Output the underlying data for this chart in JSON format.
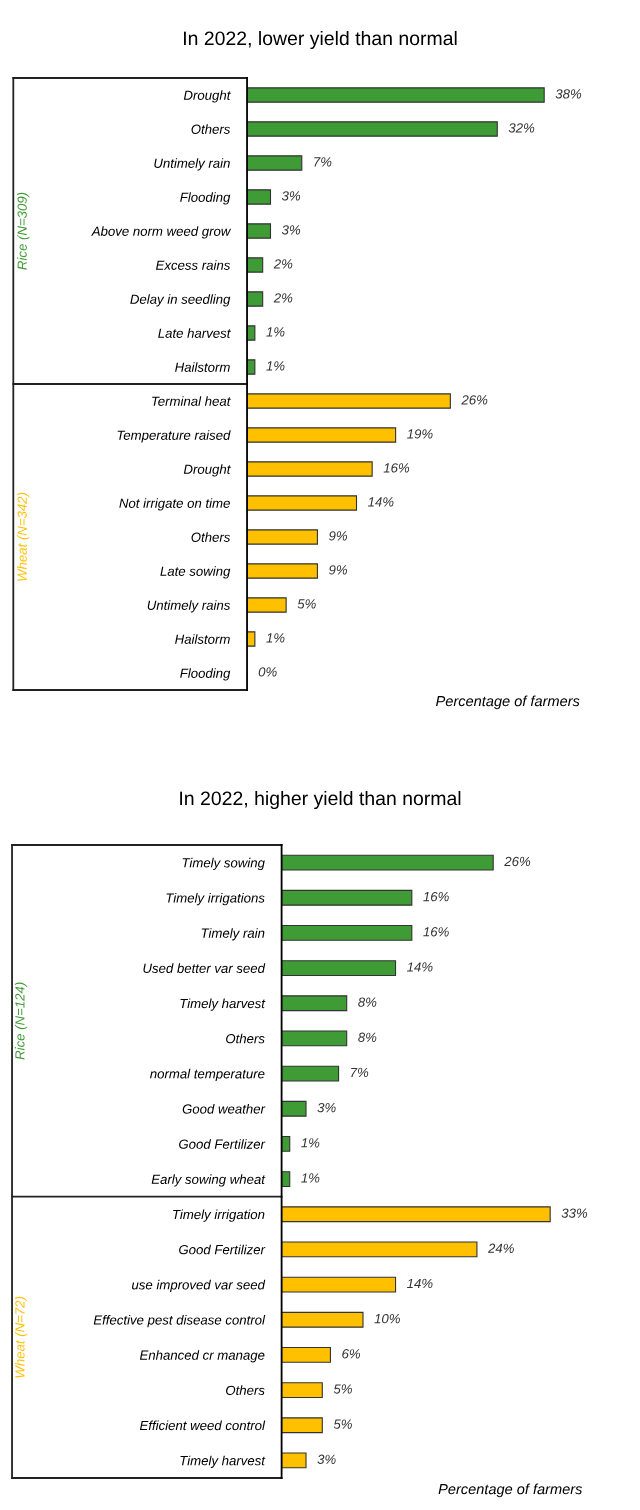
{
  "chart_data": [
    {
      "type": "bar",
      "orientation": "horizontal",
      "title": "In 2022, lower yield than normal",
      "xlabel": "Percentage of farmers",
      "tick_labels": "y",
      "categories": [
        "Drought",
        "Others",
        "Untimely rain",
        "Flooding",
        "Above norm weed grow",
        "Excess rains",
        "Delay in seedling",
        "Late harvest",
        "Hailstorm",
        "Terminal heat",
        "Temperature raised",
        "Drought",
        "Not irrigate on time",
        "Others",
        "Late sowing",
        "Untimely rains",
        "Hailstorm",
        "Flooding"
      ],
      "series": [
        {
          "name": "Rice (N=309)",
          "color": "#3f9b35",
          "values": [
            38,
            32,
            7,
            3,
            3,
            2,
            2,
            1,
            1,
            null,
            null,
            null,
            null,
            null,
            null,
            null,
            null,
            null
          ],
          "value_labels": [
            "38%",
            "32%",
            "7%",
            "3%",
            "3%",
            "2%",
            "2%",
            "1%",
            "1%",
            null,
            null,
            null,
            null,
            null,
            null,
            null,
            null,
            null
          ]
        },
        {
          "name": "Wheat (N=342)",
          "color": "#ffc000",
          "values": [
            null,
            null,
            null,
            null,
            null,
            null,
            null,
            null,
            null,
            26,
            19,
            16,
            14,
            9,
            9,
            5,
            1,
            0
          ],
          "value_labels": [
            null,
            null,
            null,
            null,
            null,
            null,
            null,
            null,
            null,
            "26%",
            "19%",
            "16%",
            "14%",
            "9%",
            "9%",
            "5%",
            "1%",
            "0%"
          ]
        }
      ]
    },
    {
      "type": "bar",
      "orientation": "horizontal",
      "title": "In 2022, higher yield than normal",
      "xlabel": "Percentage of farmers",
      "tick_labels": "y",
      "categories": [
        "Timely sowing",
        "Timely irrigations",
        "Timely rain",
        "Used better var seed",
        "Timely harvest",
        "Others",
        "normal temperature",
        "Good weather",
        "Good Fertilizer",
        "Early sowing wheat",
        "Timely irrigation",
        "Good Fertilizer",
        "use improved var seed",
        "Effective pest disease control",
        "Enhanced cr manage",
        "Others",
        "Efficient weed control",
        "Timely harvest"
      ],
      "series": [
        {
          "name": "Rice (N=124)",
          "color": "#3f9b35",
          "values": [
            26,
            16,
            16,
            14,
            8,
            8,
            7,
            3,
            1,
            1,
            null,
            null,
            null,
            null,
            null,
            null,
            null,
            null
          ],
          "value_labels": [
            "26%",
            "16%",
            "16%",
            "14%",
            "8%",
            "8%",
            "7%",
            "3%",
            "1%",
            "1%",
            null,
            null,
            null,
            null,
            null,
            null,
            null,
            null
          ]
        },
        {
          "name": "Wheat (N=72)",
          "color": "#ffc000",
          "values": [
            null,
            null,
            null,
            null,
            null,
            null,
            null,
            null,
            null,
            null,
            33,
            24,
            14,
            10,
            6,
            5,
            5,
            3
          ],
          "value_labels": [
            null,
            null,
            null,
            null,
            null,
            null,
            null,
            null,
            null,
            null,
            "33%",
            "24%",
            "14%",
            "10%",
            "6%",
            "5%",
            "5%",
            "3%"
          ]
        }
      ]
    }
  ]
}
